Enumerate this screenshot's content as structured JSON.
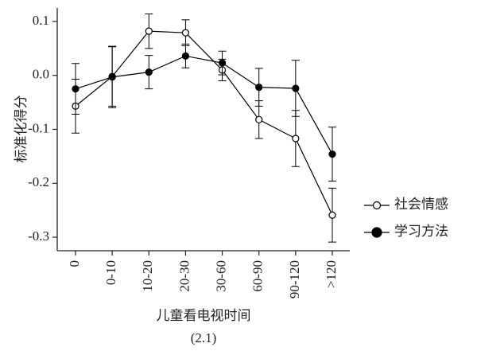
{
  "chart_data": {
    "type": "line",
    "y_label": "标准化得分",
    "x_label": "儿童看电视时间",
    "caption": "(2.1)",
    "categories": [
      "0",
      "0-10",
      "10-20",
      "20-30",
      "30-60",
      "60-90",
      "90-120",
      ">120"
    ],
    "series": [
      {
        "name": "社会情感",
        "color": "#000000",
        "marker": "open",
        "values": [
          -0.057,
          -0.002,
          0.082,
          0.079,
          0.01,
          -0.082,
          -0.117,
          -0.259
        ],
        "errors": [
          0.05,
          0.055,
          0.032,
          0.024,
          0.02,
          0.035,
          0.052,
          0.05
        ]
      },
      {
        "name": "学习方法",
        "color": "#000000",
        "marker": "filled",
        "values": [
          -0.025,
          -0.003,
          0.006,
          0.036,
          0.023,
          -0.022,
          -0.024,
          -0.146
        ],
        "errors": [
          0.047,
          0.057,
          0.031,
          0.022,
          0.022,
          0.035,
          0.052,
          0.05
        ]
      }
    ],
    "ylim": [
      -0.325,
      0.125
    ],
    "yticks": [
      0.1,
      {
        "value": 0,
        "label": "0.0"
      },
      -0.1,
      -0.2,
      -0.3
    ],
    "legend": "right"
  }
}
